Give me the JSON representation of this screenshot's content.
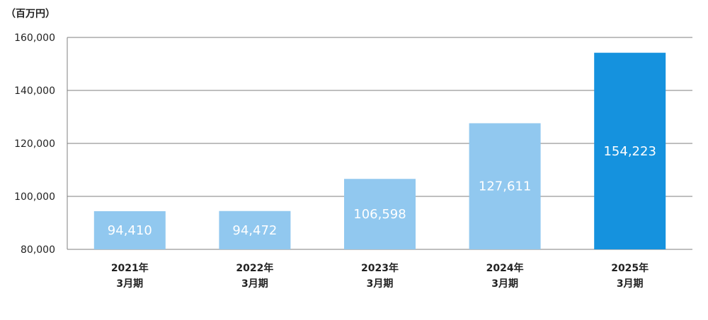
{
  "chart_data": {
    "type": "bar",
    "unit_label": "（百万円）",
    "categories": [
      [
        "2021年",
        "3月期"
      ],
      [
        "2022年",
        "3月期"
      ],
      [
        "2023年",
        "3月期"
      ],
      [
        "2024年",
        "3月期"
      ],
      [
        "2025年",
        "3月期"
      ]
    ],
    "values": [
      94410,
      94472,
      106598,
      127611,
      154223
    ],
    "value_labels": [
      "94,410",
      "94,472",
      "106,598",
      "127,611",
      "154,223"
    ],
    "ylim": [
      80000,
      160000
    ],
    "yticks": [
      80000,
      100000,
      120000,
      140000,
      160000
    ],
    "ytick_labels": [
      "80,000",
      "100,000",
      "120,000",
      "140,000",
      "160,000"
    ],
    "grid": true,
    "bar_colors": [
      "#91C8EF",
      "#91C8EF",
      "#91C8EF",
      "#91C8EF",
      "#1592DE"
    ],
    "gridline_color": "#7F7F7F"
  }
}
